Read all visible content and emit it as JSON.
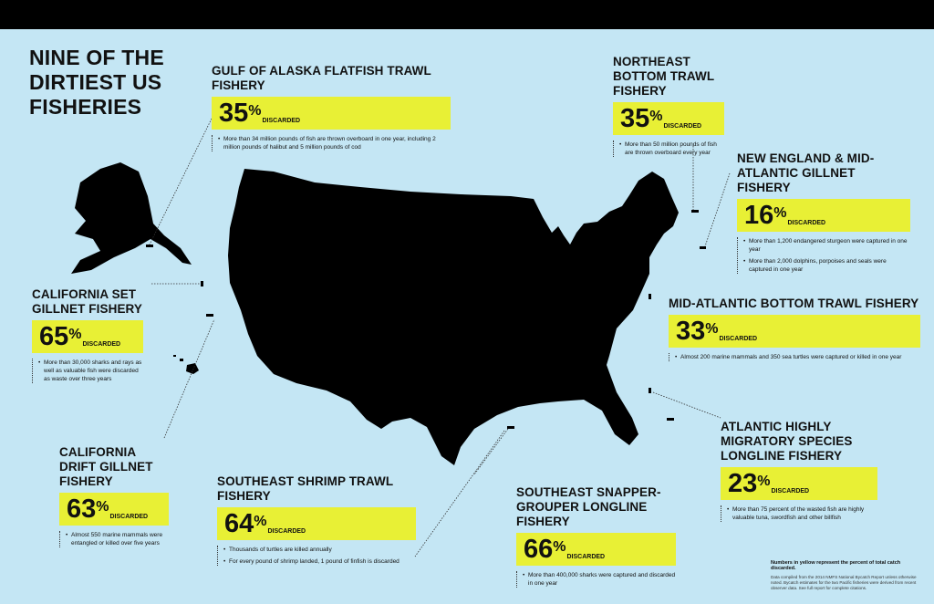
{
  "title": "NINE OF THE DIRTIEST US FISHERIES",
  "colors": {
    "background": "#c4e6f4",
    "highlight": "#e8f035",
    "land": "#000000"
  },
  "pct_suffix": "%",
  "discarded_label": "DISCARDED",
  "fisheries": [
    {
      "name": "GULF OF ALASKA FLATFISH TRAWL FISHERY",
      "percent": "35",
      "notes": [
        "More than 34 million pounds of fish are thrown overboard in one year, including 2 million pounds of halibut and 5 million pounds of cod"
      ]
    },
    {
      "name": "NORTHEAST BOTTOM TRAWL FISHERY",
      "percent": "35",
      "notes": [
        "More than 50 million pounds of fish are thrown overboard every year"
      ]
    },
    {
      "name": "NEW ENGLAND & MID-ATLANTIC GILLNET FISHERY",
      "percent": "16",
      "notes": [
        "More than 1,200 endangered sturgeon were captured in one year",
        "More than 2,000 dolphins, porpoises and seals were captured in one year"
      ]
    },
    {
      "name": "CALIFORNIA SET GILLNET FISHERY",
      "percent": "65",
      "notes": [
        "More than 30,000 sharks and rays as well as valuable fish were discarded as waste over three years"
      ]
    },
    {
      "name": "MID-ATLANTIC BOTTOM TRAWL FISHERY",
      "percent": "33",
      "notes": [
        "Almost 200 marine mammals and 350 sea turtles were captured or killed in one year"
      ]
    },
    {
      "name": "ATLANTIC HIGHLY MIGRATORY SPECIES LONGLINE FISHERY",
      "percent": "23",
      "notes": [
        "More than 75 percent of the wasted fish are highly valuable tuna, swordfish and other billfish"
      ]
    },
    {
      "name": "CALIFORNIA DRIFT GILLNET FISHERY",
      "percent": "63",
      "notes": [
        "Almost 550 marine mammals were entangled or killed over five years"
      ]
    },
    {
      "name": "SOUTHEAST SHRIMP TRAWL FISHERY",
      "percent": "64",
      "notes": [
        "Thousands of turtles are killed annually",
        "For every pound of shrimp landed, 1 pound of finfish is discarded"
      ]
    },
    {
      "name": "SOUTHEAST SNAPPER-GROUPER LONGLINE FISHERY",
      "percent": "66",
      "notes": [
        "More than 400,000 sharks were captured and discarded in one year"
      ]
    }
  ],
  "footnote": {
    "bold": "Numbers in yellow represent the percent of total catch discarded.",
    "small": "Data compiled from the 2014 NMFS National Bycatch Report unless otherwise noted. Bycatch estimates for the two Pacific fisheries were derived from recent observer data. See full report for complete citations."
  }
}
